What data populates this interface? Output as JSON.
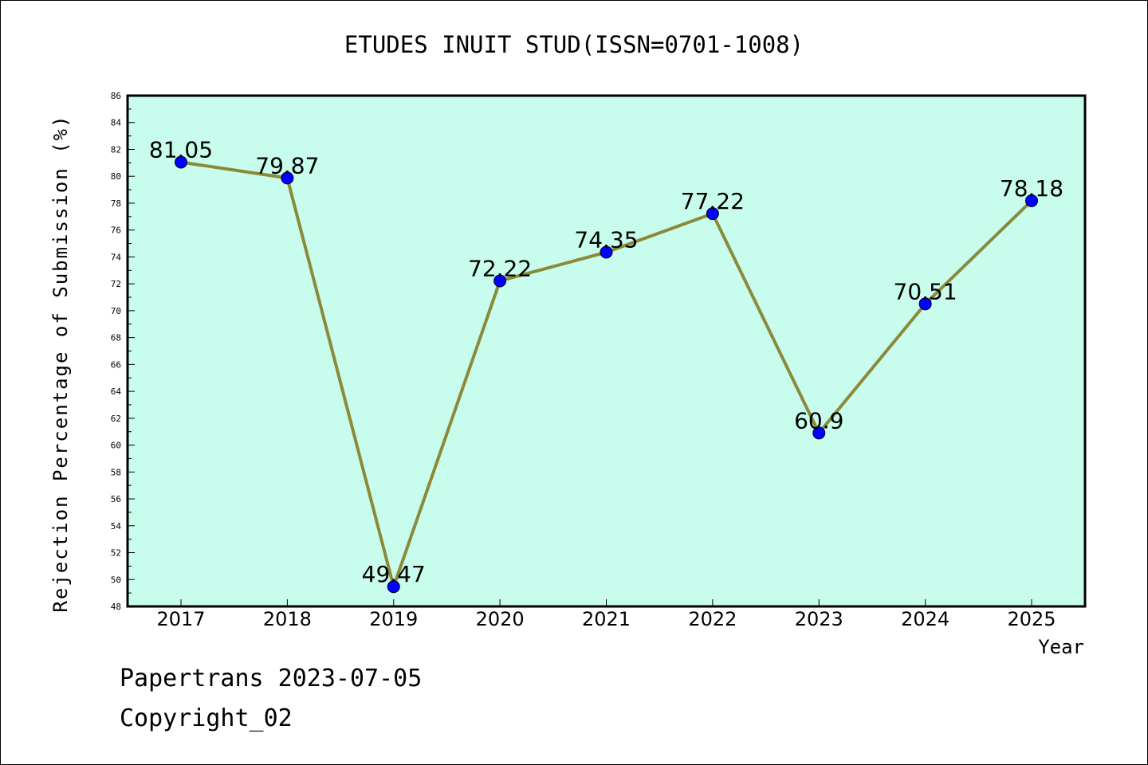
{
  "chart_data": {
    "type": "line",
    "title": "ETUDES INUIT STUD(ISSN=0701-1008)",
    "xlabel": "Year",
    "ylabel": "Rejection Percentage of Submission (%)",
    "categories": [
      "2017",
      "2018",
      "2019",
      "2020",
      "2021",
      "2022",
      "2023",
      "2024",
      "2025"
    ],
    "values": [
      81.05,
      79.87,
      49.47,
      72.22,
      74.35,
      77.22,
      60.9,
      70.51,
      78.18
    ],
    "data_labels": [
      "81.05",
      "79.87",
      "49.47",
      "72.22",
      "74.35",
      "77.22",
      "60.9",
      "70.51",
      "78.18"
    ],
    "ylim": [
      48,
      86
    ],
    "yticks": [
      48,
      50,
      52,
      54,
      56,
      58,
      60,
      62,
      64,
      66,
      68,
      70,
      72,
      74,
      76,
      78,
      80,
      82,
      84,
      86
    ],
    "grid": false,
    "colors": {
      "plot_background": "#c8fcec",
      "line": "#8b8a3a",
      "marker": "#0000ff"
    }
  },
  "footer": {
    "line1": "Papertrans 2023-07-05",
    "line2": "Copyright_02"
  }
}
